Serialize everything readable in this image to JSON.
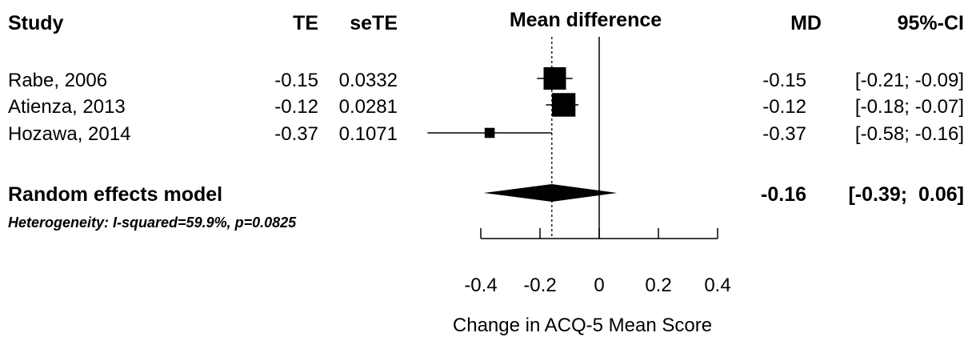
{
  "chart_data": {
    "type": "forest",
    "headers": {
      "study": "Study",
      "te": "TE",
      "sete": "seTE",
      "plot": "Mean difference",
      "md": "MD",
      "ci": "95%-CI"
    },
    "studies": [
      {
        "label": "Rabe, 2006",
        "te": "-0.15",
        "sete": "0.0332",
        "md": "-0.15",
        "ci": "[-0.21; -0.09]",
        "estimate": -0.15,
        "lower": -0.21,
        "upper": -0.09,
        "weight": 1.0
      },
      {
        "label": "Atienza, 2013",
        "te": "-0.12",
        "sete": "0.0281",
        "md": "-0.12",
        "ci": "[-0.18; -0.07]",
        "estimate": -0.12,
        "lower": -0.18,
        "upper": -0.07,
        "weight": 1.05
      },
      {
        "label": "Hozawa, 2014",
        "te": "-0.37",
        "sete": "0.1071",
        "md": "-0.37",
        "ci": "[-0.58; -0.16]",
        "estimate": -0.37,
        "lower": -0.58,
        "upper": -0.16,
        "weight": 0.45
      }
    ],
    "pooled": {
      "label": "Random effects model",
      "md": "-0.16",
      "ci": "[-0.39;  0.06]",
      "estimate": -0.16,
      "lower": -0.39,
      "upper": 0.06
    },
    "heterogeneity": "Heterogeneity: I-squared=59.9%, p=0.0825",
    "xlim": [
      -0.4,
      0.4
    ],
    "xticks": [
      -0.4,
      -0.2,
      0,
      0.2,
      0.4
    ],
    "xtick_labels": [
      "-0.4",
      "-0.2",
      "0",
      "0.2",
      "0.4"
    ],
    "xlabel": "Change in ACQ-5 Mean Score",
    "null_line": 0,
    "reference_line": -0.16
  }
}
